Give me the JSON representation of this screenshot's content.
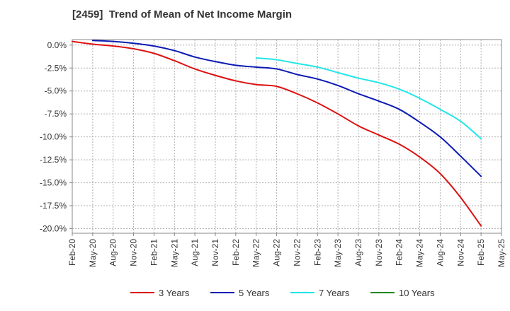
{
  "chart_data": {
    "type": "line",
    "title": "[2459]  Trend of Mean of Net Income Margin",
    "xlabel": "",
    "ylabel": "",
    "ylim": [
      -20.5,
      0.6
    ],
    "y_ticks": [
      0,
      -2.5,
      -5,
      -7.5,
      -10,
      -12.5,
      -15,
      -17.5,
      -20
    ],
    "y_tick_labels": [
      "0.0%",
      "-2.5%",
      "-5.0%",
      "-7.5%",
      "-10.0%",
      "-12.5%",
      "-15.0%",
      "-17.5%",
      "-20.0%"
    ],
    "x_tick_labels": [
      "Feb-20",
      "May-20",
      "Aug-20",
      "Nov-20",
      "Feb-21",
      "May-21",
      "Aug-21",
      "Nov-21",
      "Feb-22",
      "May-22",
      "Aug-22",
      "Nov-22",
      "Feb-23",
      "May-23",
      "Aug-23",
      "Nov-23",
      "Feb-24",
      "May-24",
      "Aug-24",
      "Nov-24",
      "Feb-25",
      "May-25"
    ],
    "grid": true,
    "legend_position": "bottom",
    "series": [
      {
        "name": "3 Years",
        "color": "#dd1111",
        "x": [
          "Feb-20",
          "May-20",
          "Aug-20",
          "Nov-20",
          "Feb-21",
          "May-21",
          "Aug-21",
          "Nov-21",
          "Feb-22",
          "May-22",
          "Aug-22",
          "Nov-22",
          "Feb-23",
          "May-23",
          "Aug-23",
          "Nov-23",
          "Feb-24",
          "May-24",
          "Aug-24",
          "Nov-24",
          "Feb-25"
        ],
        "values": [
          0.4,
          0.1,
          -0.1,
          -0.4,
          -0.9,
          -1.7,
          -2.6,
          -3.3,
          -3.9,
          -4.3,
          -4.5,
          -5.3,
          -6.3,
          -7.5,
          -8.8,
          -9.8,
          -10.8,
          -12.2,
          -14.0,
          -16.6,
          -19.7
        ]
      },
      {
        "name": "5 Years",
        "color": "#0a1ab4",
        "x": [
          "May-20",
          "Aug-20",
          "Nov-20",
          "Feb-21",
          "May-21",
          "Aug-21",
          "Nov-21",
          "Feb-22",
          "May-22",
          "Aug-22",
          "Nov-22",
          "Feb-23",
          "May-23",
          "Aug-23",
          "Nov-23",
          "Feb-24",
          "May-24",
          "Aug-24",
          "Nov-24",
          "Feb-25"
        ],
        "values": [
          0.5,
          0.4,
          0.2,
          -0.1,
          -0.6,
          -1.3,
          -1.8,
          -2.2,
          -2.4,
          -2.6,
          -3.2,
          -3.7,
          -4.4,
          -5.3,
          -6.1,
          -7.0,
          -8.4,
          -10.0,
          -12.1,
          -14.3
        ]
      },
      {
        "name": "7 Years",
        "color": "#22e6e6",
        "x": [
          "May-22",
          "Aug-22",
          "Nov-22",
          "Feb-23",
          "May-23",
          "Aug-23",
          "Nov-23",
          "Feb-24",
          "May-24",
          "Aug-24",
          "Nov-24",
          "Feb-25"
        ],
        "values": [
          -1.4,
          -1.6,
          -2.0,
          -2.4,
          -3.0,
          -3.6,
          -4.1,
          -4.8,
          -5.8,
          -7.0,
          -8.3,
          -10.2
        ]
      },
      {
        "name": "10 Years",
        "color": "#228822",
        "x": [],
        "values": []
      }
    ]
  }
}
